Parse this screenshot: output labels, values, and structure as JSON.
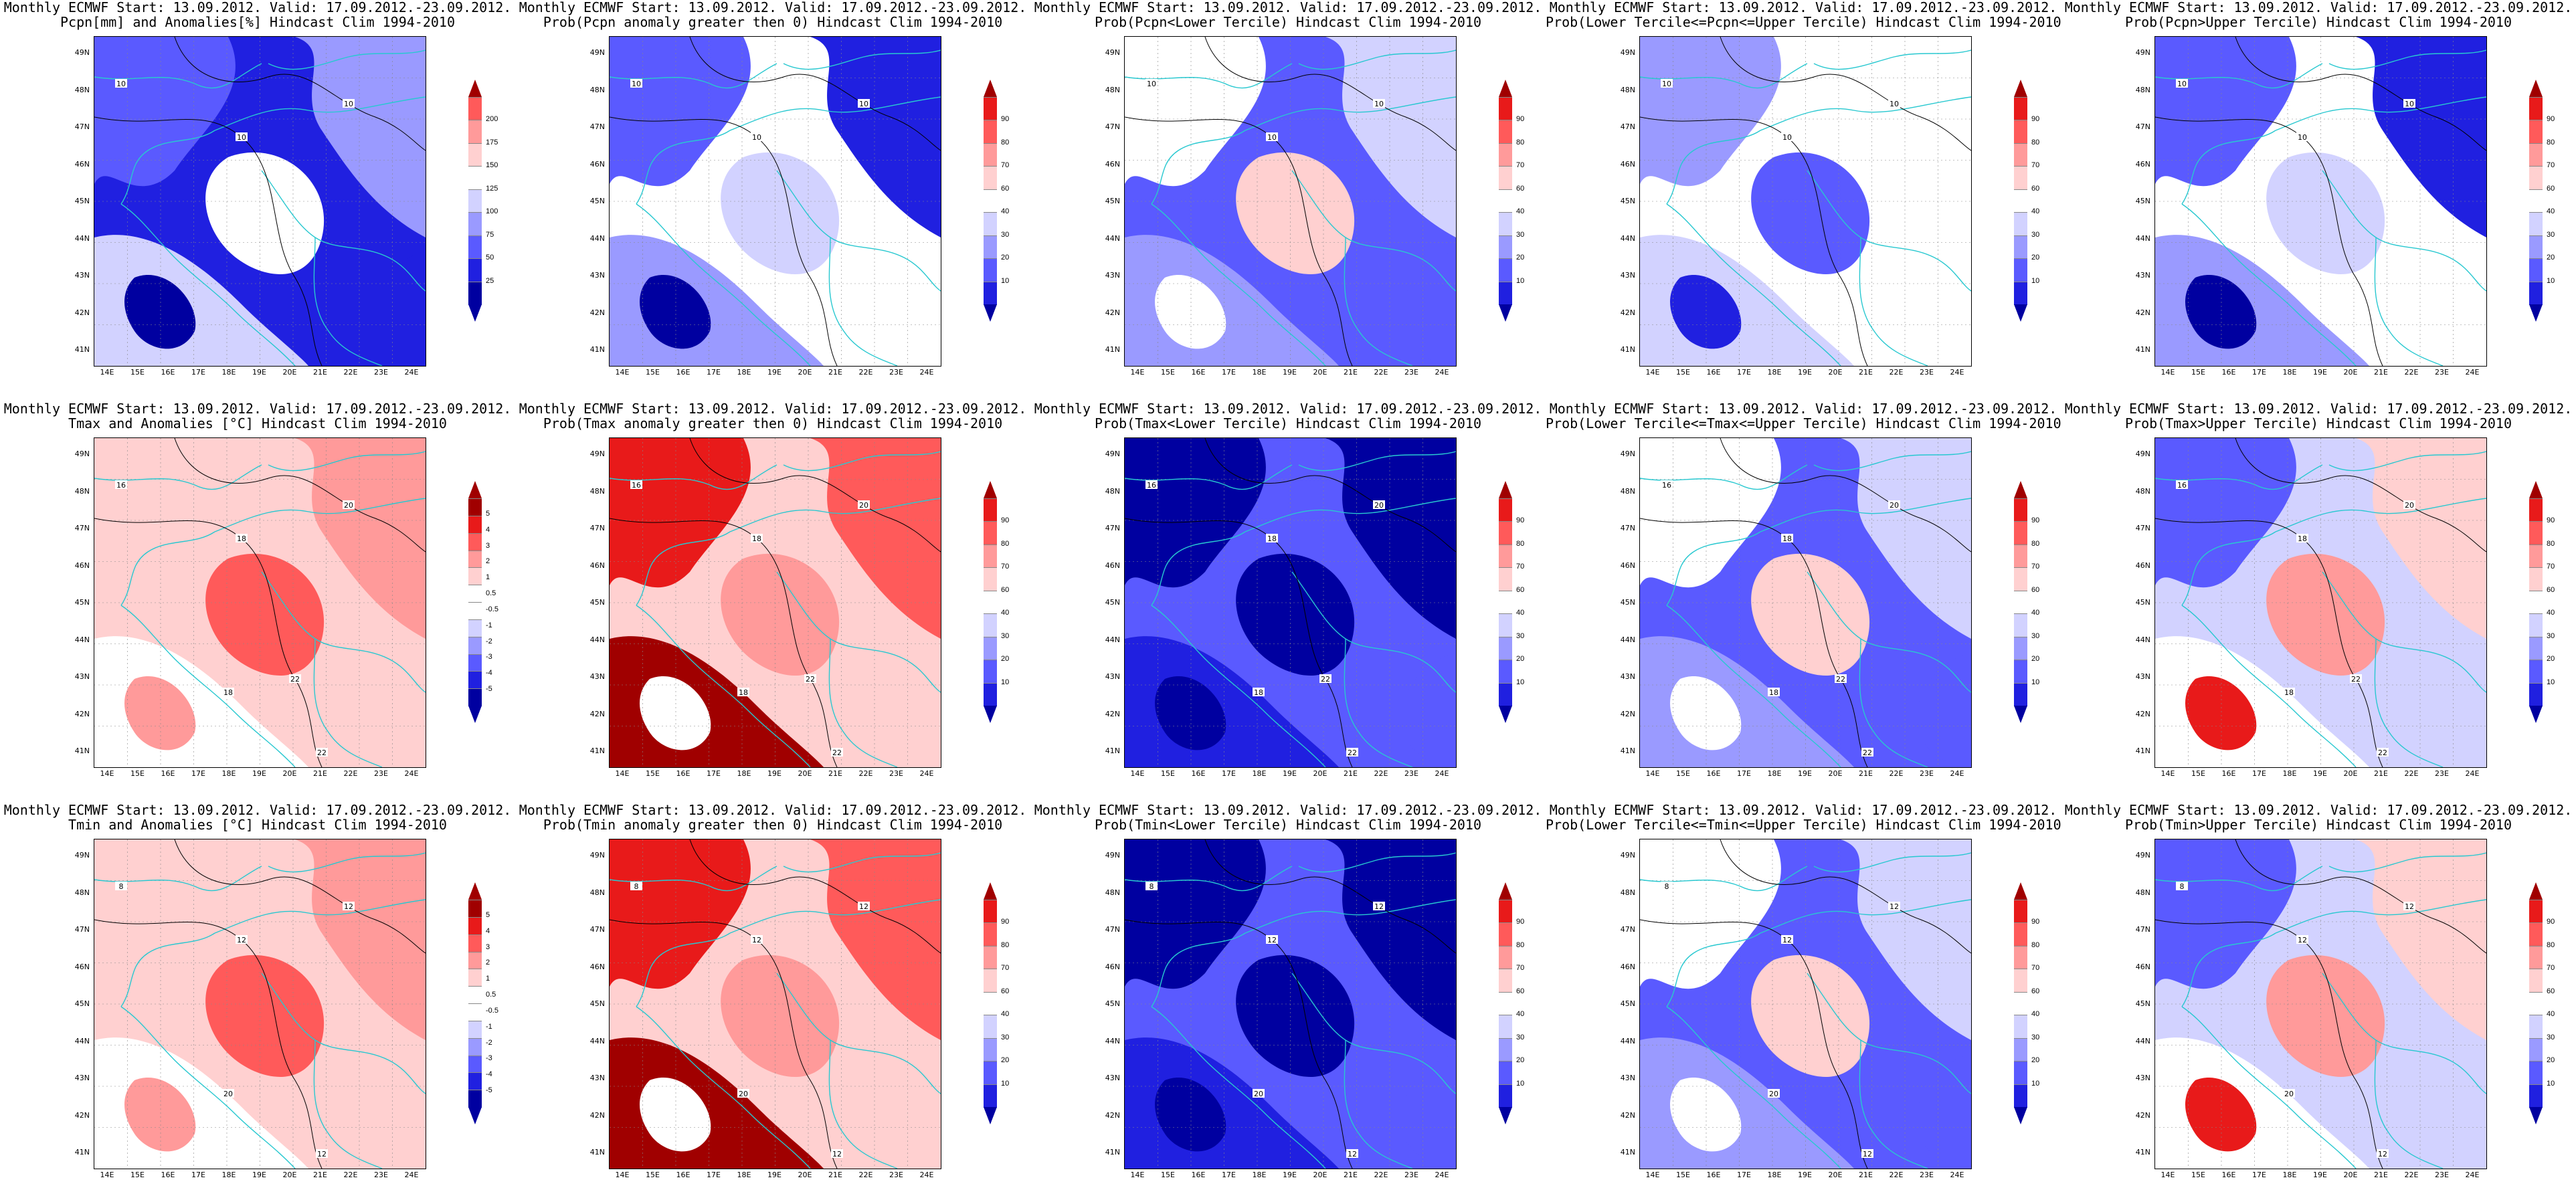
{
  "figure": {
    "panels": [
      {
        "id": "pcpn-anom",
        "title1": "Monthly ECMWF Start: 13.09.2012. Valid: 17.09.2012.-23.09.2012.",
        "title2": "Pcpn[mm] and Anomalies[%] Hindcast Clim 1994-2010",
        "palette": "anom-blue",
        "levels": [
          "25",
          "50",
          "75",
          "100",
          "125",
          "150",
          "175",
          "200"
        ],
        "contour_labels": [
          "10",
          "10",
          "10"
        ]
      },
      {
        "id": "pcpn-prob-gt0",
        "title1": "Monthly ECMWF Start: 13.09.2012. Valid: 17.09.2012.-23.09.2012.",
        "title2": "Prob(Pcpn anomaly greater then 0) Hindcast Clim 1994-2010",
        "palette": "prob-blue",
        "levels": [
          "10",
          "20",
          "30",
          "40",
          "60",
          "70",
          "80",
          "90"
        ],
        "contour_labels": [
          "10",
          "10",
          "10"
        ]
      },
      {
        "id": "pcpn-prob-lower",
        "title1": "Monthly ECMWF Start: 13.09.2012. Valid: 17.09.2012.-23.09.2012.",
        "title2": "Prob(Pcpn<Lower Tercile) Hindcast Clim 1994-2010",
        "palette": "prob-mixed",
        "levels": [
          "10",
          "20",
          "30",
          "40",
          "60",
          "70",
          "80",
          "90"
        ],
        "contour_labels": [
          "10",
          "10",
          "10"
        ]
      },
      {
        "id": "pcpn-prob-middle",
        "title1": "Monthly ECMWF Start: 13.09.2012. Valid: 17.09.2012.-23.09.2012.",
        "title2": "Prob(Lower Tercile<=Pcpn<=Upper Tercile) Hindcast Clim 1994-2010",
        "palette": "prob-blue-light",
        "levels": [
          "10",
          "20",
          "30",
          "40",
          "60",
          "70",
          "80",
          "90"
        ],
        "contour_labels": [
          "10",
          "10",
          "10"
        ]
      },
      {
        "id": "pcpn-prob-upper",
        "title1": "Monthly ECMWF Start: 13.09.2012. Valid: 17.09.2012.-23.09.2012.",
        "title2": "Prob(Pcpn>Upper Tercile) Hindcast Clim 1994-2010",
        "palette": "prob-blue",
        "levels": [
          "10",
          "20",
          "30",
          "40",
          "60",
          "70",
          "80",
          "90"
        ],
        "contour_labels": [
          "10",
          "10",
          "10"
        ]
      },
      {
        "id": "tmax-anom",
        "title1": "Monthly ECMWF Start: 13.09.2012. Valid: 17.09.2012.-23.09.2012.",
        "title2": "Tmax and Anomalies [°C] Hindcast Clim 1994-2010",
        "palette": "anom-red-light",
        "levels": [
          "-5",
          "-4",
          "-3",
          "-2",
          "-1",
          "-0.5",
          "0.5",
          "1",
          "2",
          "3",
          "4",
          "5"
        ],
        "contour_labels": [
          "18",
          "16",
          "20",
          "22",
          "18",
          "22"
        ]
      },
      {
        "id": "tmax-prob-gt0",
        "title1": "Monthly ECMWF Start: 13.09.2012. Valid: 17.09.2012.-23.09.2012.",
        "title2": "Prob(Tmax anomaly greater then 0) Hindcast Clim 1994-2010",
        "palette": "prob-red",
        "levels": [
          "10",
          "20",
          "30",
          "40",
          "60",
          "70",
          "80",
          "90"
        ],
        "contour_labels": [
          "18",
          "16",
          "20",
          "22",
          "18",
          "22"
        ]
      },
      {
        "id": "tmax-prob-lower",
        "title1": "Monthly ECMWF Start: 13.09.2012. Valid: 17.09.2012.-23.09.2012.",
        "title2": "Prob(Tmax<Lower Tercile) Hindcast Clim 1994-2010",
        "palette": "prob-deepblue",
        "levels": [
          "10",
          "20",
          "30",
          "40",
          "60",
          "70",
          "80",
          "90"
        ],
        "contour_labels": [
          "18",
          "16",
          "20",
          "22",
          "18",
          "22"
        ]
      },
      {
        "id": "tmax-prob-middle",
        "title1": "Monthly ECMWF Start: 13.09.2012. Valid: 17.09.2012.-23.09.2012.",
        "title2": "Prob(Lower Tercile<=Tmax<=Upper Tercile) Hindcast Clim 1994-2010",
        "palette": "prob-mixed",
        "levels": [
          "10",
          "20",
          "30",
          "40",
          "60",
          "70",
          "80",
          "90"
        ],
        "contour_labels": [
          "18",
          "16",
          "20",
          "22",
          "18",
          "22"
        ]
      },
      {
        "id": "tmax-prob-upper",
        "title1": "Monthly ECMWF Start: 13.09.2012. Valid: 17.09.2012.-23.09.2012.",
        "title2": "Prob(Tmax>Upper Tercile) Hindcast Clim 1994-2010",
        "palette": "prob-mixed-red",
        "levels": [
          "10",
          "20",
          "30",
          "40",
          "60",
          "70",
          "80",
          "90"
        ],
        "contour_labels": [
          "18",
          "16",
          "20",
          "22",
          "18",
          "22"
        ]
      },
      {
        "id": "tmin-anom",
        "title1": "Monthly ECMWF Start: 13.09.2012. Valid: 17.09.2012.-23.09.2012.",
        "title2": "Tmin and Anomalies [°C] Hindcast Clim 1994-2010",
        "palette": "anom-red-light",
        "levels": [
          "-5",
          "-4",
          "-3",
          "-2",
          "-1",
          "-0.5",
          "0.5",
          "1",
          "2",
          "3",
          "4",
          "5"
        ],
        "contour_labels": [
          "12",
          "8",
          "12",
          "12",
          "20"
        ]
      },
      {
        "id": "tmin-prob-gt0",
        "title1": "Monthly ECMWF Start: 13.09.2012. Valid: 17.09.2012.-23.09.2012.",
        "title2": "Prob(Tmin anomaly greater then 0) Hindcast Clim 1994-2010",
        "palette": "prob-red",
        "levels": [
          "10",
          "20",
          "30",
          "40",
          "60",
          "70",
          "80",
          "90"
        ],
        "contour_labels": [
          "12",
          "8",
          "12",
          "12",
          "20"
        ]
      },
      {
        "id": "tmin-prob-lower",
        "title1": "Monthly ECMWF Start: 13.09.2012. Valid: 17.09.2012.-23.09.2012.",
        "title2": "Prob(Tmin<Lower Tercile) Hindcast Clim 1994-2010",
        "palette": "prob-deepblue",
        "levels": [
          "10",
          "20",
          "30",
          "40",
          "60",
          "70",
          "80",
          "90"
        ],
        "contour_labels": [
          "12",
          "8",
          "12",
          "12",
          "20"
        ]
      },
      {
        "id": "tmin-prob-middle",
        "title1": "Monthly ECMWF Start: 13.09.2012. Valid: 17.09.2012.-23.09.2012.",
        "title2": "Prob(Lower Tercile<=Tmin<=Upper Tercile) Hindcast Clim 1994-2010",
        "palette": "prob-mixed",
        "levels": [
          "10",
          "20",
          "30",
          "40",
          "60",
          "70",
          "80",
          "90"
        ],
        "contour_labels": [
          "12",
          "8",
          "12",
          "12",
          "20"
        ]
      },
      {
        "id": "tmin-prob-upper",
        "title1": "Monthly ECMWF Start: 13.09.2012. Valid: 17.09.2012.-23.09.2012.",
        "title2": "Prob(Tmin>Upper Tercile) Hindcast Clim 1994-2010",
        "palette": "prob-mixed-red",
        "levels": [
          "10",
          "20",
          "30",
          "40",
          "60",
          "70",
          "80",
          "90"
        ],
        "contour_labels": [
          "12",
          "8",
          "12",
          "12",
          "20"
        ]
      }
    ],
    "lat_labels": [
      "49N",
      "48N",
      "47N",
      "46N",
      "45N",
      "44N",
      "43N",
      "42N",
      "41N"
    ],
    "lon_labels": [
      "14E",
      "15E",
      "16E",
      "17E",
      "18E",
      "19E",
      "20E",
      "21E",
      "22E",
      "23E",
      "24E"
    ],
    "colors": {
      "deep_blue": "#0000a0",
      "blue": "#2020e0",
      "mid_blue": "#5a5aff",
      "light_blue": "#9a9aff",
      "pale_blue": "#d2d2ff",
      "white": "#ffffff",
      "pale_red": "#ffd0d0",
      "light_red": "#ff9a9a",
      "mid_red": "#ff5a5a",
      "red": "#e81a1a",
      "deep_red": "#a00000",
      "coast": "#28c8d0",
      "contour": "#000000"
    }
  }
}
